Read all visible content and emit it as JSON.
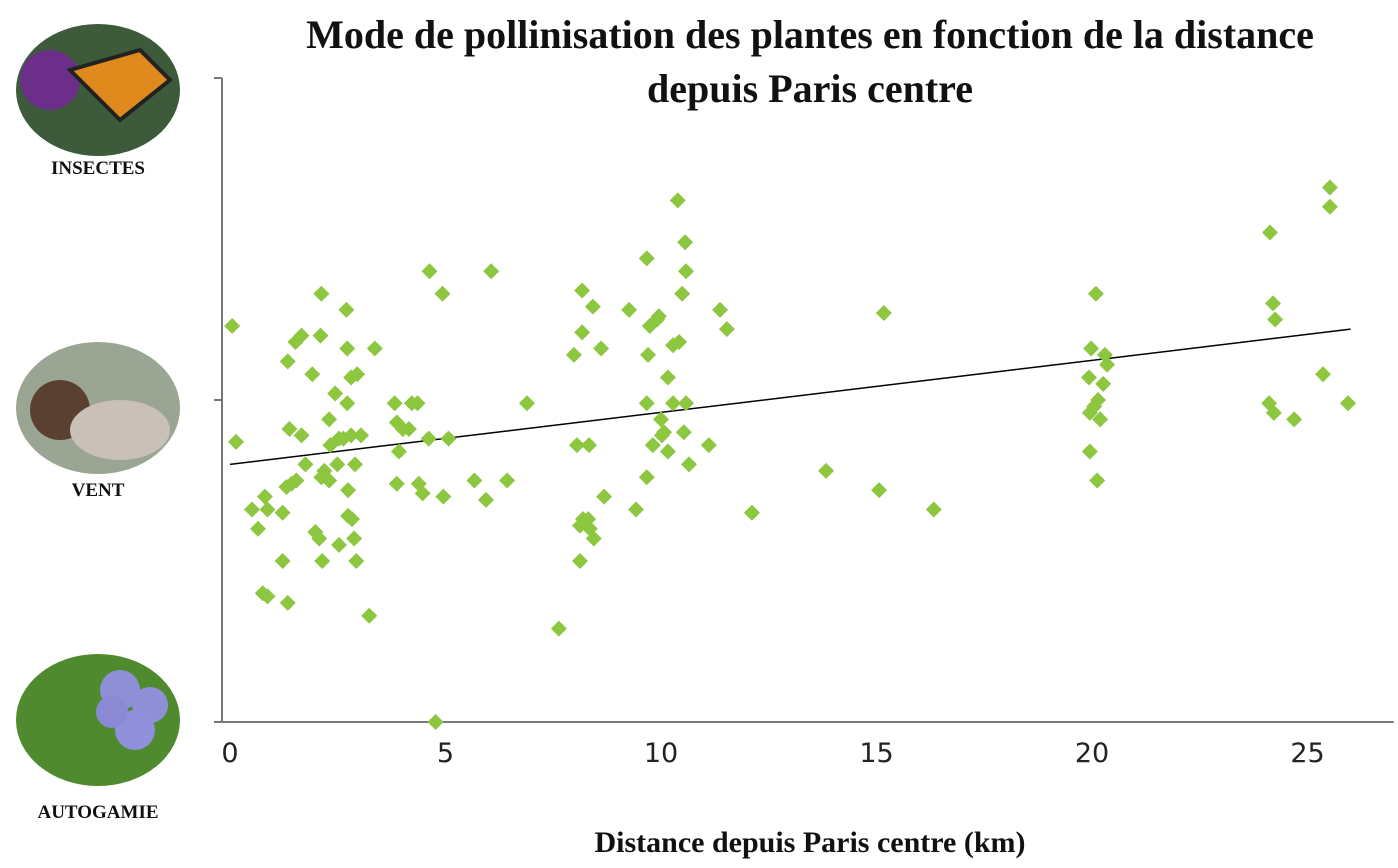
{
  "chart_data": {
    "type": "scatter",
    "title": "Mode de pollinisation des plantes en fonction de la distance depuis Paris centre",
    "xlabel": "Distance depuis Paris centre (km)",
    "x": [
      0.05,
      0.14,
      0.51,
      0.65,
      0.81,
      0.87,
      0.76,
      0.87,
      1.22,
      1.22,
      1.34,
      1.31,
      1.38,
      1.43,
      1.54,
      1.34,
      1.52,
      1.66,
      1.66,
      1.75,
      1.91,
      1.98,
      2.07,
      2.12,
      2.1,
      2.14,
      2.12,
      2.19,
      2.3,
      2.3,
      2.33,
      2.44,
      2.49,
      2.53,
      2.53,
      2.63,
      2.7,
      2.72,
      2.72,
      2.74,
      2.74,
      2.81,
      2.81,
      2.83,
      2.88,
      2.9,
      2.95,
      2.93,
      3.04,
      3.23,
      3.36,
      3.82,
      3.87,
      3.92,
      3.87,
      4.01,
      4.15,
      4.22,
      4.35,
      4.38,
      4.47,
      4.63,
      4.61,
      4.77,
      4.95,
      4.93,
      5.07,
      5.67,
      5.94,
      6.06,
      6.43,
      6.89,
      7.63,
      7.98,
      8.05,
      8.12,
      8.12,
      8.17,
      8.17,
      8.19,
      8.31,
      8.33,
      8.35,
      8.42,
      8.44,
      8.61,
      8.68,
      9.26,
      9.42,
      9.67,
      9.67,
      9.67,
      9.7,
      9.74,
      9.81,
      9.91,
      9.95,
      10.0,
      10.02,
      10.07,
      10.16,
      10.16,
      10.28,
      10.28,
      10.39,
      10.42,
      10.49,
      10.53,
      10.56,
      10.58,
      10.58,
      10.65,
      11.11,
      11.37,
      11.53,
      12.11,
      13.83,
      15.06,
      15.17,
      16.33,
      19.98,
      19.93,
      19.95,
      19.95,
      20.05,
      20.09,
      20.12,
      20.14,
      20.19,
      20.26,
      20.3,
      20.35,
      24.11,
      24.13,
      24.2,
      24.22,
      24.25,
      24.69,
      25.36,
      25.52,
      25.52,
      25.94
    ],
    "values": [
      1.23,
      0.87,
      0.66,
      0.6,
      0.7,
      0.66,
      0.4,
      0.39,
      0.5,
      0.65,
      0.37,
      0.73,
      0.91,
      0.74,
      0.75,
      1.12,
      1.18,
      1.2,
      0.89,
      0.8,
      1.08,
      0.59,
      0.57,
      1.33,
      1.2,
      0.5,
      0.76,
      0.78,
      0.94,
      0.75,
      0.86,
      1.02,
      0.8,
      0.55,
      0.88,
      0.88,
      1.28,
      1.16,
      0.99,
      0.72,
      0.64,
      1.07,
      0.89,
      0.63,
      0.57,
      0.8,
      1.08,
      0.5,
      0.89,
      0.33,
      1.16,
      0.99,
      0.93,
      0.84,
      0.74,
      0.91,
      0.91,
      0.99,
      0.99,
      0.74,
      0.71,
      1.4,
      0.88,
      0,
      0.7,
      1.33,
      0.88,
      0.75,
      0.69,
      1.4,
      0.75,
      0.99,
      0.29,
      1.14,
      0.86,
      0.5,
      0.61,
      1.34,
      1.21,
      0.63,
      0.63,
      0.86,
      0.6,
      1.29,
      0.57,
      1.16,
      0.7,
      1.28,
      0.66,
      1.44,
      0.76,
      0.99,
      1.14,
      1.23,
      0.86,
      1.25,
      1.26,
      0.94,
      0.89,
      0.9,
      1.07,
      0.84,
      0.99,
      1.17,
      1.62,
      1.18,
      1.33,
      0.9,
      1.49,
      1.4,
      0.99,
      0.8,
      0.86,
      1.28,
      1.22,
      0.65,
      0.78,
      0.72,
      1.27,
      0.66,
      1.16,
      1.07,
      0.84,
      0.96,
      0.98,
      1.33,
      0.75,
      1.0,
      0.94,
      1.05,
      1.14,
      1.11,
      0.99,
      1.52,
      1.3,
      0.96,
      1.25,
      0.94,
      1.08,
      1.66,
      1.6,
      0.99
    ],
    "color": "#8dc63f",
    "trendline": {
      "x": [
        0,
        26
      ],
      "values": [
        0.8,
        1.22
      ],
      "color": "#000000"
    },
    "xlim": [
      0,
      27
    ],
    "xticks": [
      0,
      5,
      10,
      15,
      20,
      25
    ],
    "ylim": [
      0,
      2
    ],
    "yticks": [
      {
        "value": 0,
        "label": "AUTOGAMIE"
      },
      {
        "value": 1,
        "label": "VENT"
      },
      {
        "value": 2,
        "label": "INSECTES"
      }
    ],
    "grid": false
  }
}
